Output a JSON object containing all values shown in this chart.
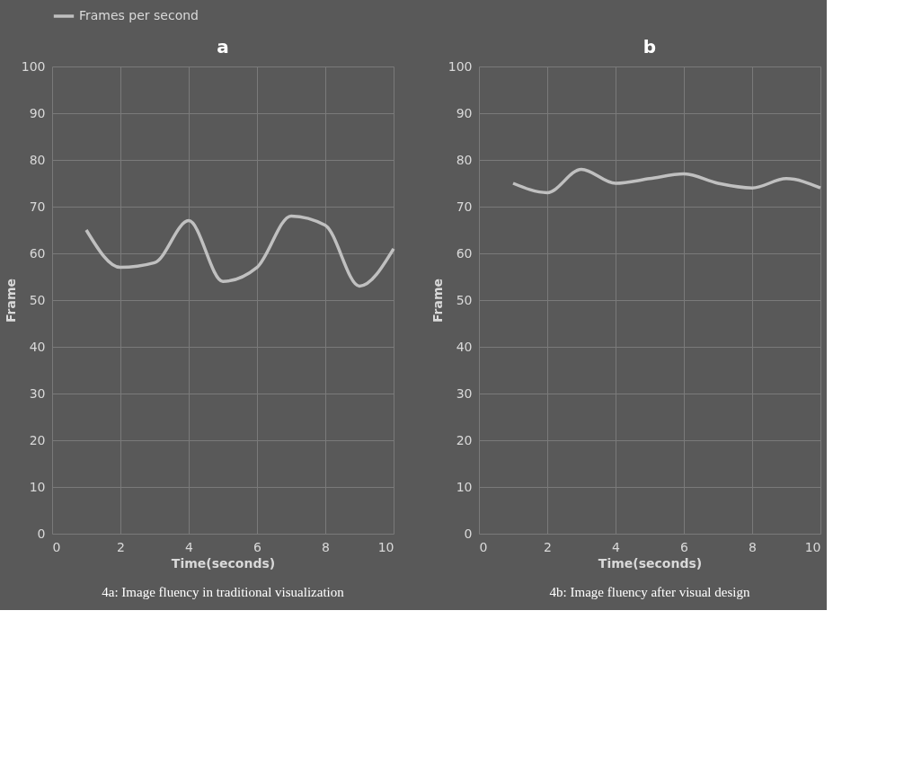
{
  "chart_data": [
    {
      "type": "line",
      "title": "a",
      "xlabel": "Time(seconds)",
      "ylabel": "Frame",
      "x": [
        1,
        2,
        3,
        4,
        5,
        6,
        7,
        8,
        9,
        10
      ],
      "series": [
        {
          "name": "Frames per second",
          "color": "#c0c0c0",
          "values": [
            65,
            57,
            58,
            67,
            54,
            57,
            68,
            66,
            53,
            61
          ]
        }
      ],
      "xlim": [
        0,
        10
      ],
      "xticks": [
        0,
        2,
        4,
        6,
        8,
        10
      ],
      "ylim": [
        0,
        100
      ],
      "yticks": [
        0,
        10,
        20,
        30,
        40,
        50,
        60,
        70,
        80,
        90,
        100
      ],
      "grid": true,
      "legend": "top",
      "marker": "none",
      "annotations": [
        "4a: Image fluency in traditional visualization"
      ]
    },
    {
      "type": "line",
      "title": "b",
      "xlabel": "Time(seconds)",
      "ylabel": "Frame",
      "x": [
        1,
        2,
        3,
        4,
        5,
        6,
        7,
        8,
        9,
        10
      ],
      "series": [
        {
          "name": "Frames per second",
          "color": "#c0c0c0",
          "values": [
            75,
            73,
            78,
            75,
            76,
            77,
            75,
            74,
            76,
            74
          ]
        }
      ],
      "xlim": [
        0,
        10
      ],
      "xticks": [
        0,
        2,
        4,
        6,
        8,
        10
      ],
      "ylim": [
        0,
        100
      ],
      "yticks": [
        0,
        10,
        20,
        30,
        40,
        50,
        60,
        70,
        80,
        90,
        100
      ],
      "grid": true,
      "legend": "top",
      "marker": "none",
      "annotations": [
        "4b: Image fluency after visual design"
      ]
    }
  ]
}
